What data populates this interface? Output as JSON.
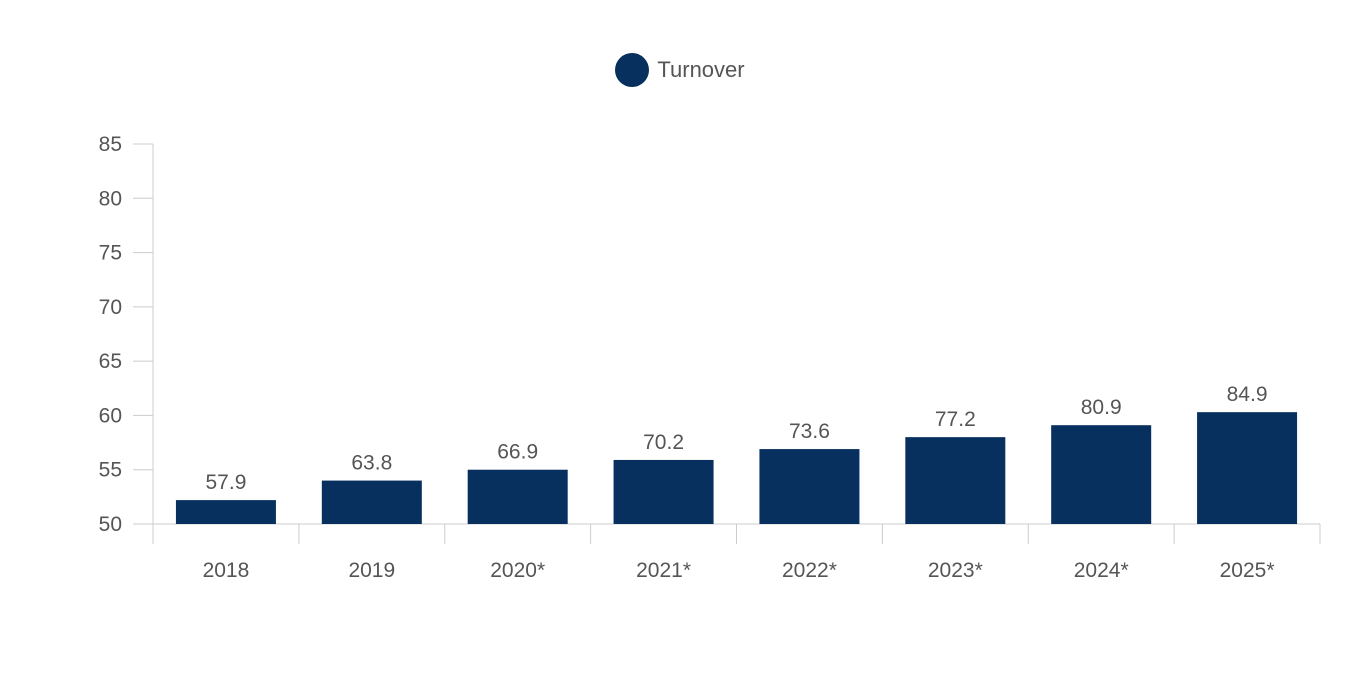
{
  "legend": {
    "label": "Turnover"
  },
  "colors": {
    "bar": "#07305f",
    "axis": "#cccccc",
    "text": "#555555"
  },
  "chart_data": {
    "type": "bar",
    "categories": [
      "2018",
      "2019",
      "2020*",
      "2021*",
      "2022*",
      "2023*",
      "2024*",
      "2025*"
    ],
    "series": [
      {
        "name": "Turnover",
        "values": [
          57.9,
          63.8,
          66.9,
          70.2,
          73.6,
          77.2,
          80.9,
          84.9
        ],
        "bar_heights": [
          52.2,
          54.0,
          55.0,
          55.9,
          56.9,
          58.0,
          59.1,
          60.3
        ]
      }
    ],
    "yticks": [
      50,
      55,
      60,
      65,
      70,
      75,
      80,
      85
    ],
    "ylim": [
      50,
      85
    ],
    "grid": false,
    "legend_position": "top-center"
  }
}
